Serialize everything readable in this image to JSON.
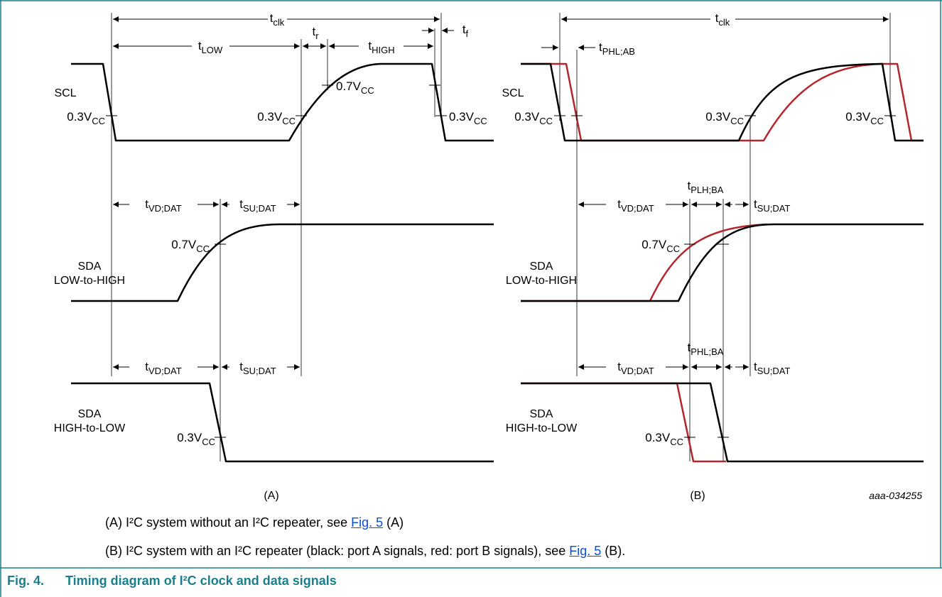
{
  "labels": {
    "tclk": "t",
    "tclk_sub": "clk",
    "tlow": "t",
    "tlow_sub": "LOW",
    "tr": "t",
    "tr_sub": "r",
    "thigh": "t",
    "thigh_sub": "HIGH",
    "tf": "t",
    "tf_sub": "f",
    "tphl_ab": "t",
    "tphl_ab_sub": "PHL;AB",
    "tvd": "t",
    "tvd_sub": "VD;DAT",
    "tsu": "t",
    "tsu_sub": "SU;DAT",
    "tplh_ba": "t",
    "tplh_ba_sub": "PLH;BA",
    "tphl_ba": "t",
    "tphl_ba_sub": "PHL;BA",
    "v03": "0.3V",
    "v07": "0.7V",
    "vsub": "CC",
    "scl": "SCL",
    "sda": "SDA",
    "low_to_high": "LOW-to-HIGH",
    "high_to_low": "HIGH-to-LOW",
    "panel_a": "(A)",
    "panel_b": "(B)",
    "code": "aaa-034255"
  },
  "colors": {
    "port_a": "#000000",
    "port_b": "#b3262b",
    "frame": "#1a7f8c",
    "title": "#1a7f8c",
    "link": "#0b4fd6"
  },
  "caption": {
    "line_a_pre": "(A) I²C system without an I²C repeater, see ",
    "line_a_link": "Fig. 5",
    "line_a_post": " (A)",
    "line_b_pre": "(B) I²C system with an I²C repeater (black: port A signals, red: port B signals), see ",
    "line_b_link": "Fig. 5",
    "line_b_post": " (B)."
  },
  "figure": {
    "number": "Fig. 4.",
    "title": "Timing diagram of I²C clock and data signals"
  }
}
